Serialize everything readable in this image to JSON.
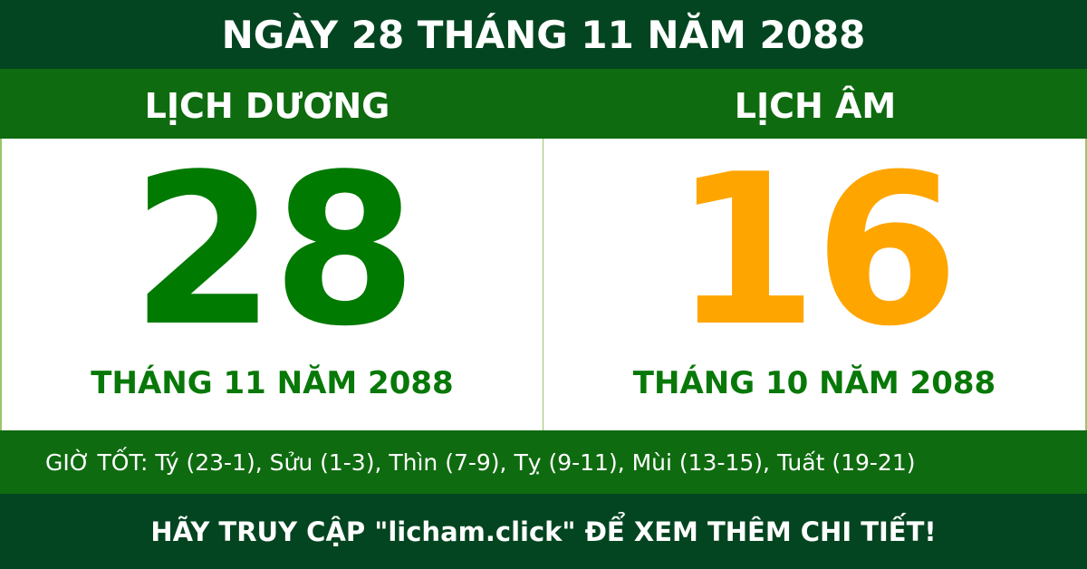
{
  "title": "NGÀY 28 THÁNG 11 NĂM 2088",
  "solar": {
    "label": "LỊCH DƯƠNG",
    "day": "28",
    "month_year": "THÁNG 11 NĂM 2088"
  },
  "lunar": {
    "label": "LỊCH ÂM",
    "day": "16",
    "month_year": "THÁNG 10 NĂM 2088"
  },
  "good_hours": "GIỜ TỐT: Tý (23-1), Sửu (1-3), Thìn (7-9), Tỵ (9-11), Mùi (13-15), Tuất (19-21)",
  "footer": "HÃY TRUY CẬP \"licham.click\" ĐỂ XEM THÊM CHI TIẾT!",
  "colors": {
    "dark_green": "#034520",
    "green": "#0f6b10",
    "solar_number": "#007a00",
    "lunar_number": "#ffa500"
  }
}
